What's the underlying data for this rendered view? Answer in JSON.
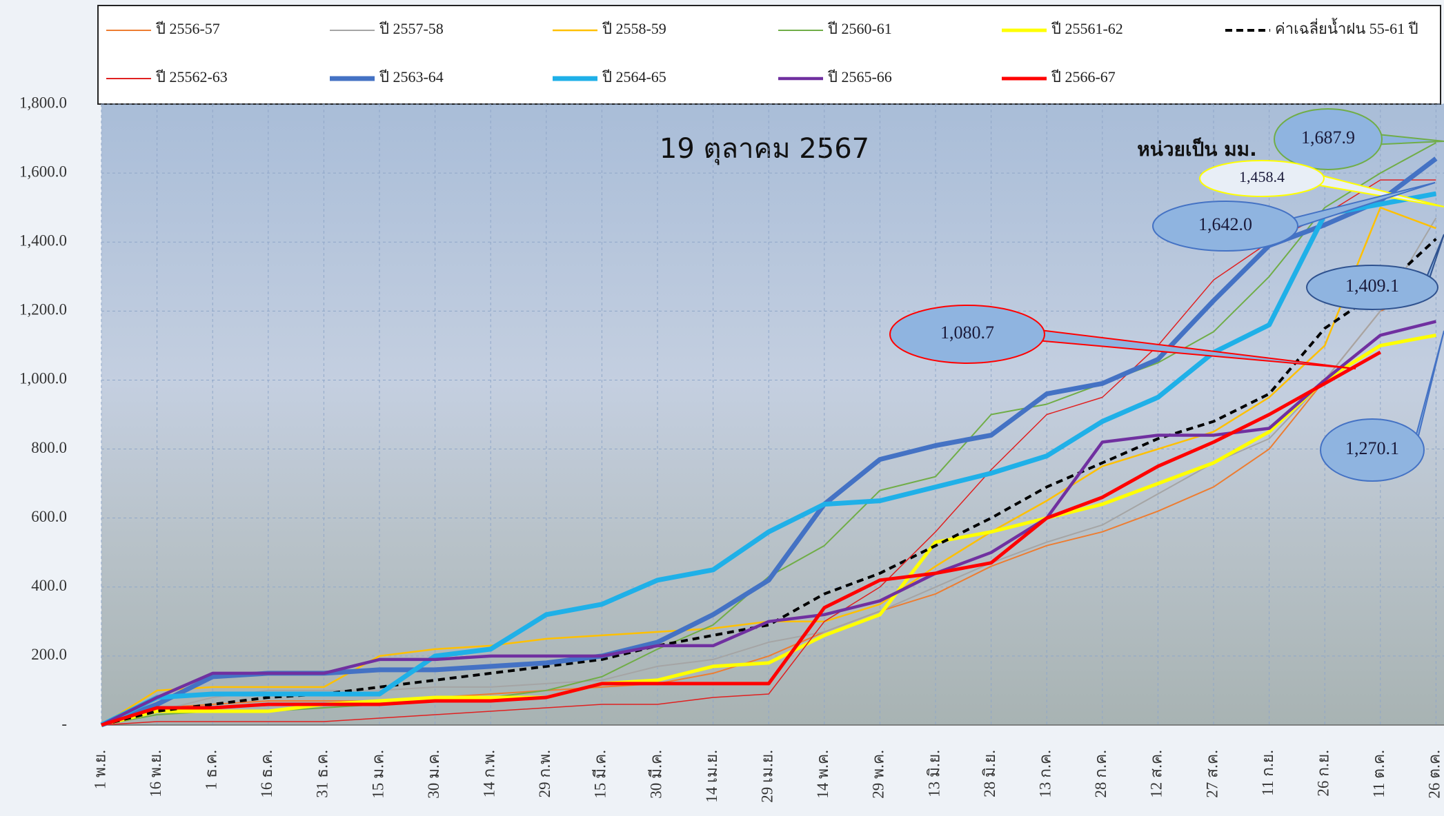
{
  "chart_data": {
    "type": "line",
    "title": "19 ตุลาคม 2567",
    "unit_note": "หน่วยเป็น มม.",
    "categories": [
      "1 พ.ย.",
      "16 พ.ย.",
      "1 ธ.ค.",
      "16 ธ.ค.",
      "31 ธ.ค.",
      "15 ม.ค.",
      "30 ม.ค.",
      "14 ก.พ.",
      "29 ก.พ.",
      "15 มี.ค.",
      "30 มี.ค.",
      "14 เม.ย.",
      "29 เม.ย.",
      "14 พ.ค.",
      "29 พ.ค.",
      "13 มิ.ย.",
      "28 มิ.ย.",
      "13 ก.ค.",
      "28 ก.ค.",
      "12 ส.ค.",
      "27 ส.ค.",
      "11 ก.ย.",
      "26 ก.ย.",
      "11 ต.ค.",
      "26 ต.ค."
    ],
    "ylim": [
      0,
      1800
    ],
    "yticks": [
      {
        "value": 0,
        "label": "-"
      },
      {
        "value": 200,
        "label": "200.0"
      },
      {
        "value": 400,
        "label": "400.0"
      },
      {
        "value": 600,
        "label": "600.0"
      },
      {
        "value": 800,
        "label": "800.0"
      },
      {
        "value": 1000,
        "label": "1,000.0"
      },
      {
        "value": 1200,
        "label": "1,200.0"
      },
      {
        "value": 1400,
        "label": "1,400.0"
      },
      {
        "value": 1600,
        "label": "1,600.0"
      },
      {
        "value": 1800,
        "label": "1,800.0"
      }
    ],
    "grid": true,
    "legend": "top",
    "series": [
      {
        "name": "ปี 2556-57",
        "color": "#ed7d31",
        "width": 2,
        "dashed": false,
        "values": [
          0,
          50,
          60,
          70,
          70,
          70,
          80,
          90,
          100,
          110,
          120,
          150,
          200,
          270,
          330,
          380,
          460,
          520,
          560,
          620,
          690,
          800,
          1000,
          1200,
          1270
        ]
      },
      {
        "name": "ปี 2557-58",
        "color": "#a5a5a5",
        "width": 2,
        "dashed": false,
        "values": [
          0,
          40,
          80,
          100,
          100,
          100,
          110,
          110,
          120,
          130,
          170,
          190,
          240,
          270,
          330,
          400,
          470,
          530,
          580,
          670,
          760,
          830,
          1000,
          1200,
          1470
        ]
      },
      {
        "name": "ปี 2558-59",
        "color": "#ffc000",
        "width": 2.5,
        "dashed": false,
        "values": [
          0,
          100,
          110,
          110,
          110,
          200,
          220,
          230,
          250,
          260,
          270,
          280,
          300,
          300,
          350,
          460,
          560,
          650,
          750,
          800,
          850,
          950,
          1100,
          1500,
          1440
        ]
      },
      {
        "name": "ปี 2560-61",
        "color": "#70ad47",
        "width": 2,
        "dashed": false,
        "values": [
          0,
          30,
          40,
          40,
          50,
          60,
          70,
          80,
          100,
          140,
          220,
          290,
          430,
          520,
          680,
          720,
          900,
          930,
          990,
          1050,
          1140,
          1300,
          1500,
          1600,
          1687.9
        ]
      },
      {
        "name": "ปี 25561-62",
        "color": "#ffff00",
        "width": 5,
        "dashed": false,
        "values": [
          0,
          40,
          40,
          40,
          60,
          70,
          80,
          80,
          80,
          120,
          130,
          170,
          180,
          260,
          320,
          530,
          560,
          600,
          640,
          700,
          760,
          850,
          1000,
          1100,
          1130
        ]
      },
      {
        "name": "ค่าเฉลี่ยน้ำฝน 55-61 ปี",
        "color": "#000000",
        "width": 4,
        "dashed": true,
        "values": [
          0,
          40,
          60,
          80,
          90,
          110,
          130,
          150,
          170,
          190,
          230,
          260,
          290,
          380,
          440,
          520,
          600,
          690,
          760,
          830,
          880,
          960,
          1150,
          1260,
          1409.1
        ]
      },
      {
        "name": "ปี 25562-63",
        "color": "#e02020",
        "width": 1.5,
        "dashed": false,
        "values": [
          0,
          10,
          10,
          10,
          10,
          20,
          30,
          40,
          50,
          60,
          60,
          80,
          90,
          300,
          400,
          560,
          740,
          900,
          950,
          1100,
          1290,
          1400,
          1480,
          1580,
          1580
        ]
      },
      {
        "name": "ปี 2563-64",
        "color": "#4472c4",
        "width": 7,
        "dashed": false,
        "values": [
          0,
          60,
          140,
          150,
          150,
          160,
          160,
          170,
          180,
          200,
          240,
          320,
          420,
          640,
          770,
          810,
          840,
          960,
          990,
          1060,
          1230,
          1390,
          1450,
          1520,
          1642.0
        ]
      },
      {
        "name": "ปี 2564-65",
        "color": "#1fb0e8",
        "width": 7,
        "dashed": false,
        "values": [
          0,
          80,
          90,
          90,
          90,
          90,
          200,
          220,
          320,
          350,
          420,
          450,
          560,
          640,
          650,
          690,
          730,
          780,
          880,
          950,
          1080,
          1160,
          1480,
          1510,
          1540
        ]
      },
      {
        "name": "ปี 2565-66",
        "color": "#7030a0",
        "width": 4.5,
        "dashed": false,
        "values": [
          0,
          80,
          150,
          150,
          150,
          190,
          190,
          200,
          200,
          200,
          230,
          230,
          300,
          320,
          360,
          440,
          500,
          600,
          820,
          840,
          840,
          860,
          1000,
          1130,
          1170
        ]
      },
      {
        "name": "ปี 2566-67",
        "color": "#ff0000",
        "width": 5,
        "dashed": false,
        "values": [
          0,
          50,
          50,
          60,
          60,
          60,
          70,
          70,
          80,
          120,
          120,
          120,
          120,
          340,
          420,
          440,
          470,
          600,
          660,
          750,
          820,
          900,
          990,
          1080.7,
          null
        ]
      }
    ],
    "annotations": [
      "1,687.9",
      "1,458.4",
      "1,642.0",
      "1,409.1",
      "1,080.7",
      "1,270.1"
    ]
  }
}
